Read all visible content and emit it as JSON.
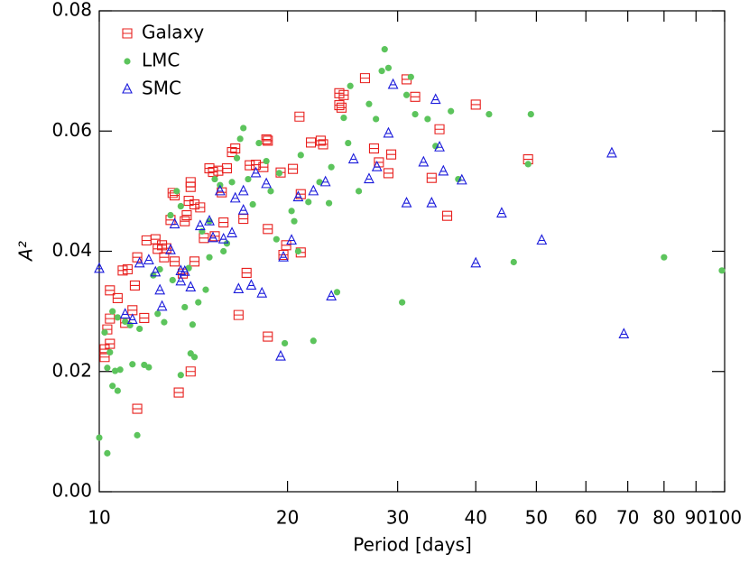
{
  "chart_data": {
    "type": "scatter",
    "xlabel": "Period [days]",
    "ylabel": "A²",
    "xscale": "log",
    "xlim": [
      10,
      100
    ],
    "ylim": [
      0,
      0.08
    ],
    "xticks": [
      10,
      20,
      30,
      40,
      50,
      60,
      70,
      80,
      90,
      100
    ],
    "yticks": [
      {
        "value": 0,
        "label": "0.00"
      },
      {
        "value": 0.02,
        "label": "0.02"
      },
      {
        "value": 0.04,
        "label": "0.04"
      },
      {
        "value": 0.06,
        "label": "0.06"
      },
      {
        "value": 0.08,
        "label": "0.08"
      }
    ],
    "legend": "top-left",
    "series": [
      {
        "name": "Galaxy",
        "color": "#e8201e",
        "marker": "square",
        "x": [
          10.2,
          10.2,
          10.3,
          10.4,
          10.4,
          10.4,
          10.7,
          10.9,
          11.0,
          11.1,
          11.3,
          11.4,
          11.5,
          11.5,
          11.8,
          11.9,
          12.3,
          12.4,
          12.6,
          12.7,
          12.8,
          13.0,
          13.1,
          13.2,
          13.2,
          13.4,
          13.6,
          13.7,
          13.8,
          13.9,
          14.0,
          14.0,
          14.0,
          14.2,
          14.2,
          14.5,
          14.7,
          15.0,
          15.2,
          15.3,
          15.5,
          15.7,
          15.8,
          16.0,
          16.3,
          16.5,
          16.7,
          17.0,
          17.2,
          17.4,
          17.8,
          18.3,
          18.5,
          18.6,
          18.6,
          18.6,
          19.5,
          19.7,
          19.9,
          20.4,
          20.9,
          21.0,
          21.0,
          21.8,
          22.6,
          22.8,
          24.2,
          24.2,
          24.4,
          24.6,
          26.6,
          27.5,
          28.0,
          29.0,
          29.3,
          31.0,
          32.0,
          34.0,
          35.0,
          36.0,
          40.0,
          48.5
        ],
        "values": [
          0.0224,
          0.0237,
          0.027,
          0.0288,
          0.0246,
          0.0335,
          0.0322,
          0.0368,
          0.0281,
          0.037,
          0.0302,
          0.0343,
          0.039,
          0.0138,
          0.0289,
          0.0418,
          0.042,
          0.0404,
          0.041,
          0.039,
          0.0405,
          0.0452,
          0.0497,
          0.0493,
          0.0383,
          0.0165,
          0.0363,
          0.045,
          0.046,
          0.0484,
          0.0507,
          0.0515,
          0.02,
          0.0478,
          0.0383,
          0.0473,
          0.0422,
          0.0538,
          0.0532,
          0.0425,
          0.0534,
          0.0498,
          0.0448,
          0.0538,
          0.0565,
          0.0571,
          0.0294,
          0.0454,
          0.0364,
          0.0543,
          0.0544,
          0.054,
          0.0586,
          0.0584,
          0.0437,
          0.0258,
          0.0531,
          0.0394,
          0.041,
          0.0537,
          0.0624,
          0.0495,
          0.0398,
          0.0581,
          0.0584,
          0.0578,
          0.0663,
          0.0643,
          0.0639,
          0.066,
          0.0688,
          0.0571,
          0.0548,
          0.053,
          0.0561,
          0.0686,
          0.0657,
          0.0522,
          0.0603,
          0.0459,
          0.0644,
          0.0553
        ]
      },
      {
        "name": "LMC",
        "color": "#5cc45c",
        "marker": "circle",
        "x": [
          10.0,
          10.3,
          10.2,
          10.3,
          10.4,
          10.5,
          10.6,
          10.7,
          10.8,
          10.5,
          10.7,
          11.0,
          11.2,
          11.3,
          11.5,
          11.6,
          11.8,
          12.0,
          12.2,
          12.4,
          12.5,
          12.7,
          13.0,
          13.1,
          13.3,
          13.5,
          13.5,
          13.7,
          13.9,
          14.0,
          14.1,
          14.2,
          14.4,
          14.6,
          14.8,
          15.0,
          15.0,
          15.3,
          15.6,
          15.8,
          16.0,
          16.3,
          16.6,
          16.8,
          17.0,
          17.3,
          17.6,
          18.0,
          18.5,
          18.8,
          19.2,
          19.4,
          19.8,
          20.3,
          20.5,
          20.8,
          21.0,
          21.6,
          22.0,
          22.5,
          23.3,
          23.5,
          24.0,
          24.6,
          25.0,
          25.2,
          26.0,
          27.0,
          27.7,
          28.3,
          28.6,
          29.0,
          30.5,
          31.0,
          31.5,
          32.0,
          33.5,
          34.5,
          36.5,
          37.5,
          42.0,
          46.0,
          48.5,
          49.0,
          80.0,
          99.0
        ],
        "values": [
          0.009,
          0.0064,
          0.0265,
          0.0206,
          0.0232,
          0.0176,
          0.0201,
          0.0168,
          0.0203,
          0.03,
          0.029,
          0.0283,
          0.0277,
          0.0212,
          0.0094,
          0.0271,
          0.0211,
          0.0207,
          0.036,
          0.0296,
          0.037,
          0.0282,
          0.046,
          0.0352,
          0.05,
          0.0475,
          0.0194,
          0.0307,
          0.0372,
          0.023,
          0.0278,
          0.0224,
          0.0315,
          0.0433,
          0.0336,
          0.039,
          0.045,
          0.052,
          0.051,
          0.04,
          0.0413,
          0.0515,
          0.0555,
          0.0587,
          0.0605,
          0.052,
          0.0478,
          0.058,
          0.055,
          0.05,
          0.042,
          0.053,
          0.0247,
          0.0467,
          0.045,
          0.04,
          0.056,
          0.0482,
          0.0251,
          0.0515,
          0.048,
          0.054,
          0.0332,
          0.0622,
          0.058,
          0.0675,
          0.05,
          0.0645,
          0.062,
          0.07,
          0.0736,
          0.0705,
          0.0315,
          0.066,
          0.069,
          0.0628,
          0.062,
          0.0575,
          0.0633,
          0.052,
          0.0628,
          0.0382,
          0.0545,
          0.0628,
          0.039,
          0.0368
        ]
      },
      {
        "name": "SMC",
        "color": "#1a1adb",
        "marker": "triangle",
        "x": [
          10.0,
          11.0,
          11.3,
          11.6,
          12.0,
          12.3,
          12.5,
          12.6,
          13.0,
          13.2,
          13.5,
          13.5,
          13.7,
          14.0,
          14.5,
          15.0,
          15.2,
          15.6,
          15.8,
          16.3,
          16.5,
          16.7,
          17.0,
          17.0,
          17.5,
          17.8,
          18.2,
          18.5,
          19.5,
          19.7,
          20.3,
          20.8,
          22.0,
          23.0,
          23.5,
          25.5,
          27.0,
          27.8,
          29.0,
          29.5,
          31.0,
          33.0,
          34.0,
          34.5,
          35.0,
          35.5,
          38.0,
          40.0,
          44.0,
          51.0,
          66.0,
          69.0
        ],
        "values": [
          0.0371,
          0.0295,
          0.0286,
          0.038,
          0.0385,
          0.0365,
          0.0335,
          0.0308,
          0.0402,
          0.0445,
          0.0367,
          0.035,
          0.0366,
          0.034,
          0.0442,
          0.045,
          0.0422,
          0.05,
          0.042,
          0.043,
          0.0488,
          0.0337,
          0.05,
          0.0468,
          0.0343,
          0.053,
          0.033,
          0.0512,
          0.0225,
          0.039,
          0.0418,
          0.049,
          0.05,
          0.0515,
          0.0325,
          0.0553,
          0.052,
          0.054,
          0.0596,
          0.0677,
          0.048,
          0.0548,
          0.048,
          0.0652,
          0.0573,
          0.0533,
          0.0518,
          0.038,
          0.0463,
          0.0418,
          0.0563,
          0.0262
        ]
      }
    ]
  }
}
